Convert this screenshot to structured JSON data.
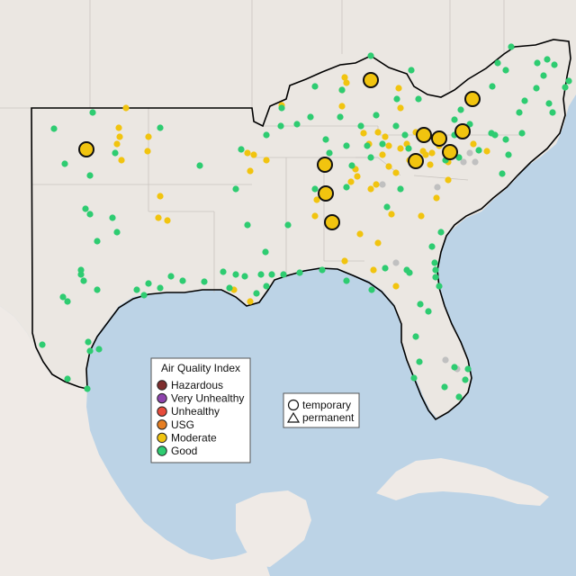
{
  "map": {
    "region": "Southeastern United States",
    "basemap_colors": {
      "water": "#bcd3e6",
      "land": "#ebe7e2",
      "land_outside_us": "#efeae6",
      "state_border": "#c9c4bf",
      "highlight_border": "#000000"
    }
  },
  "legend": {
    "title": "Air Quality Index",
    "items": [
      {
        "label": "Hazardous",
        "color": "#7e2e2e"
      },
      {
        "label": "Very Unhealthy",
        "color": "#8e44ad"
      },
      {
        "label": "Unhealthy",
        "color": "#e74c3c"
      },
      {
        "label": "USG",
        "color": "#e67e22"
      },
      {
        "label": "Moderate",
        "color": "#f1c40f"
      },
      {
        "label": "Good",
        "color": "#2ecc71"
      }
    ]
  },
  "monitor_legend": {
    "items": [
      {
        "label": "temporary",
        "shape": "circle"
      },
      {
        "label": "permanent",
        "shape": "triangle"
      }
    ]
  },
  "monitors": {
    "temporary_moderate_count": 13,
    "category_colors": {
      "good": "#2ecc71",
      "moderate": "#f1c40f",
      "no_data": "#c0c0c0"
    }
  }
}
